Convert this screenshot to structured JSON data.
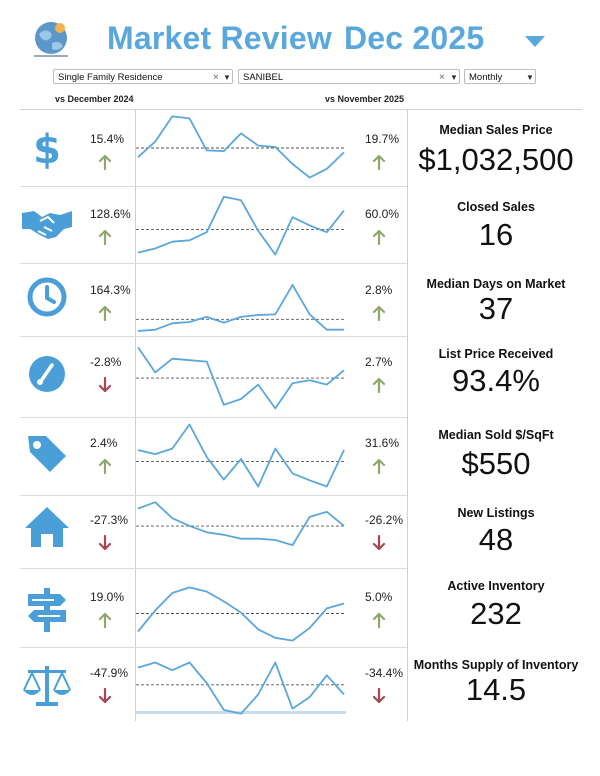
{
  "header": {
    "title_word1": "Market Review",
    "title_word2": "Dec 2025",
    "brand_color": "#5aa7dc",
    "logo_icon": "globe-logo-icon",
    "dropdown_icon": "caret-down-icon"
  },
  "filters": {
    "property_type": "Single Family Residence",
    "city": "SANIBEL",
    "period": "Monthly",
    "clear_symbol": "×"
  },
  "comparisons": {
    "yoy_label": "vs December 2024",
    "mom_label": "vs November 2025"
  },
  "colors": {
    "up": "#8fa86a",
    "down": "#a8474f",
    "icon": "#4b9fd8",
    "sparkline": "#5aa7dc"
  },
  "metrics": [
    {
      "label": "Median Sales Price",
      "value": "$1,032,500",
      "icon": "dollar-icon",
      "yoy": "15.4%",
      "yoy_dir": "up",
      "mom": "19.7%",
      "mom_dir": "up",
      "spark": [
        0.35,
        0.58,
        0.95,
        0.92,
        0.45,
        0.44,
        0.7,
        0.52,
        0.5,
        0.25,
        0.05,
        0.18,
        0.42
      ]
    },
    {
      "label": "Closed Sales",
      "value": "16",
      "icon": "handshake-icon",
      "yoy": "128.6%",
      "yoy_dir": "up",
      "mom": "60.0%",
      "mom_dir": "up",
      "spark": [
        0.08,
        0.14,
        0.24,
        0.26,
        0.38,
        0.9,
        0.85,
        0.4,
        0.05,
        0.6,
        0.48,
        0.38,
        0.7
      ]
    },
    {
      "label": "Median Days on Market",
      "value": "37",
      "icon": "clock-icon",
      "yoy": "164.3%",
      "yoy_dir": "up",
      "mom": "2.8%",
      "mom_dir": "up",
      "spark": [
        0.0,
        0.02,
        0.12,
        0.14,
        0.22,
        0.13,
        0.22,
        0.25,
        0.26,
        0.72,
        0.26,
        0.02,
        0.02
      ]
    },
    {
      "label": "List Price Received",
      "value": "93.4%",
      "icon": "gauge-icon",
      "yoy": "-2.8%",
      "yoy_dir": "down",
      "mom": "2.7%",
      "mom_dir": "up",
      "spark": [
        0.9,
        0.55,
        0.74,
        0.72,
        0.7,
        0.1,
        0.18,
        0.38,
        0.05,
        0.4,
        0.44,
        0.38,
        0.58
      ]
    },
    {
      "label": "Median Sold $/SqFt",
      "value": "$550",
      "icon": "price-tag-icon",
      "yoy": "2.4%",
      "yoy_dir": "up",
      "mom": "31.6%",
      "mom_dir": "up",
      "spark": [
        0.58,
        0.52,
        0.6,
        0.95,
        0.48,
        0.15,
        0.45,
        0.05,
        0.6,
        0.24,
        0.14,
        0.05,
        0.58
      ]
    },
    {
      "label": "New Listings",
      "value": "48",
      "icon": "house-icon",
      "yoy": "-27.3%",
      "yoy_dir": "down",
      "mom": "-26.2%",
      "mom_dir": "down",
      "spark": [
        0.85,
        0.95,
        0.7,
        0.58,
        0.48,
        0.44,
        0.38,
        0.38,
        0.36,
        0.28,
        0.72,
        0.8,
        0.58
      ]
    },
    {
      "label": "Active Inventory",
      "value": "232",
      "icon": "signpost-icon",
      "yoy": "19.0%",
      "yoy_dir": "up",
      "mom": "5.0%",
      "mom_dir": "up",
      "spark": [
        0.15,
        0.45,
        0.7,
        0.78,
        0.72,
        0.58,
        0.42,
        0.18,
        0.06,
        0.02,
        0.2,
        0.48,
        0.55
      ]
    },
    {
      "label": "Months Supply of Inventory",
      "value": "14.5",
      "icon": "scale-icon",
      "yoy": "-47.9%",
      "yoy_dir": "down",
      "mom": "-34.4%",
      "mom_dir": "down",
      "spark": [
        0.74,
        0.82,
        0.7,
        0.82,
        0.5,
        0.08,
        0.02,
        0.32,
        0.82,
        0.1,
        0.28,
        0.62,
        0.32
      ]
    }
  ]
}
